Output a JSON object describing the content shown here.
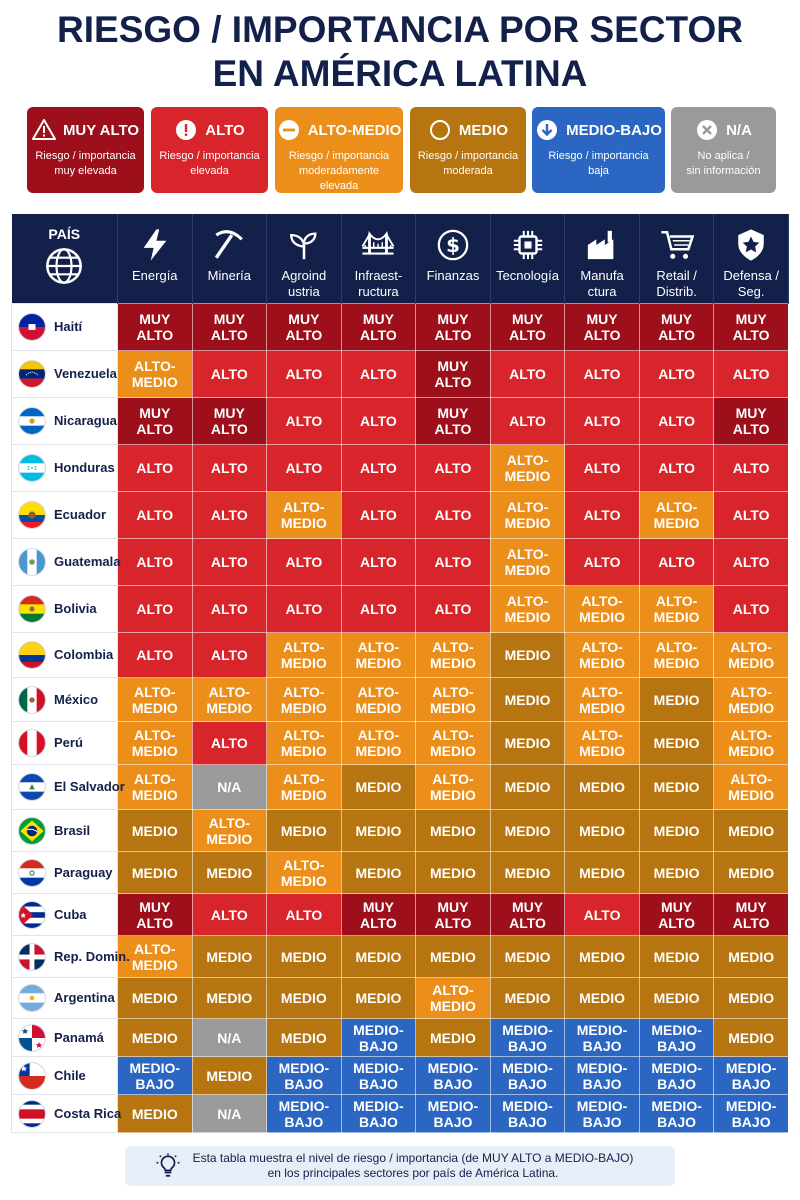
{
  "title": {
    "line1": "RIESGO / IMPORTANCIA POR SECTOR",
    "line2": "EN AMÉRICA LATINA"
  },
  "colors": {
    "MUY ALTO": "#9c0f1b",
    "ALTO": "#d8252b",
    "ALTO-MEDIO": "#ec8e1a",
    "MEDIO": "#b67510",
    "MEDIO-BAJO": "#2a66c2",
    "N/A": "#9a9a9a",
    "header": "#13204a"
  },
  "legend": [
    {
      "label": "MUY ALTO",
      "desc": "Riesgo / importancia\nmuy elevada",
      "icon": "warning-triangle-icon"
    },
    {
      "label": "ALTO",
      "desc": "Riesgo / importancia\nelevada",
      "icon": "exclamation-circle-icon"
    },
    {
      "label": "ALTO-MEDIO",
      "desc": "Riesgo / importancia\nmoderadamente\nelevada",
      "icon": "minus-circle-icon"
    },
    {
      "label": "MEDIO",
      "desc": "Riesgo / importancia\nmoderada",
      "icon": "empty-circle-icon"
    },
    {
      "label": "MEDIO-BAJO",
      "desc": "Riesgo / importancia\nbaja",
      "icon": "arrow-down-circle-icon"
    },
    {
      "label": "N/A",
      "desc": "No aplica /\nsin información",
      "icon": "x-circle-icon"
    }
  ],
  "chart_data": {
    "type": "table",
    "row_header": "PAÍS",
    "columns": [
      {
        "label": "Energía",
        "icon": "lightning-icon"
      },
      {
        "label": "Minería",
        "icon": "pickaxe-icon"
      },
      {
        "label": "Agroind\nustria",
        "icon": "sprout-icon"
      },
      {
        "label": "Infraest-\nructura",
        "icon": "bridge-icon"
      },
      {
        "label": "Finanzas",
        "icon": "dollar-coin-icon"
      },
      {
        "label": "Tecnología",
        "icon": "chip-icon"
      },
      {
        "label": "Manufa\nctura",
        "icon": "factory-icon"
      },
      {
        "label": "Retail /\nDistrib.",
        "icon": "cart-icon"
      },
      {
        "label": "Defensa /\nSeg.",
        "icon": "shield-star-icon"
      }
    ],
    "rows": [
      {
        "country": "Haití",
        "flag": "haiti-flag-icon",
        "values": [
          "MUY ALTO",
          "MUY ALTO",
          "MUY ALTO",
          "MUY ALTO",
          "MUY ALTO",
          "MUY ALTO",
          "MUY ALTO",
          "MUY ALTO",
          "MUY ALTO"
        ]
      },
      {
        "country": "Venezuela",
        "flag": "venezuela-flag-icon",
        "values": [
          "ALTO-MEDIO",
          "ALTO",
          "ALTO",
          "ALTO",
          "MUY ALTO",
          "ALTO",
          "ALTO",
          "ALTO",
          "ALTO"
        ]
      },
      {
        "country": "Nicaragua",
        "flag": "nicaragua-flag-icon",
        "values": [
          "MUY ALTO",
          "MUY ALTO",
          "ALTO",
          "ALTO",
          "MUY ALTO",
          "ALTO",
          "ALTO",
          "ALTO",
          "MUY ALTO"
        ]
      },
      {
        "country": "Honduras",
        "flag": "honduras-flag-icon",
        "values": [
          "ALTO",
          "ALTO",
          "ALTO",
          "ALTO",
          "ALTO",
          "ALTO-MEDIO",
          "ALTO",
          "ALTO",
          "ALTO"
        ]
      },
      {
        "country": "Ecuador",
        "flag": "ecuador-flag-icon",
        "values": [
          "ALTO",
          "ALTO",
          "ALTO-MEDIO",
          "ALTO",
          "ALTO",
          "ALTO-MEDIO",
          "ALTO",
          "ALTO-MEDIO",
          "ALTO"
        ]
      },
      {
        "country": "Guatemala",
        "flag": "guatemala-flag-icon",
        "values": [
          "ALTO",
          "ALTO",
          "ALTO",
          "ALTO",
          "ALTO",
          "ALTO-MEDIO",
          "ALTO",
          "ALTO",
          "ALTO"
        ]
      },
      {
        "country": "Bolivia",
        "flag": "bolivia-flag-icon",
        "values": [
          "ALTO",
          "ALTO",
          "ALTO",
          "ALTO",
          "ALTO",
          "ALTO-MEDIO",
          "ALTO-MEDIO",
          "ALTO-MEDIO",
          "ALTO"
        ]
      },
      {
        "country": "Colombia",
        "flag": "colombia-flag-icon",
        "values": [
          "ALTO",
          "ALTO",
          "ALTO-MEDIO",
          "ALTO-MEDIO",
          "ALTO-MEDIO",
          "MEDIO",
          "ALTO-MEDIO",
          "ALTO-MEDIO",
          "ALTO-MEDIO"
        ]
      },
      {
        "country": "México",
        "flag": "mexico-flag-icon",
        "values": [
          "ALTO-MEDIO",
          "ALTO-MEDIO",
          "ALTO-MEDIO",
          "ALTO-MEDIO",
          "ALTO-MEDIO",
          "MEDIO",
          "ALTO-MEDIO",
          "MEDIO",
          "ALTO-MEDIO"
        ]
      },
      {
        "country": "Perú",
        "flag": "peru-flag-icon",
        "values": [
          "ALTO-MEDIO",
          "ALTO",
          "ALTO-MEDIO",
          "ALTO-MEDIO",
          "ALTO-MEDIO",
          "MEDIO",
          "ALTO-MEDIO",
          "MEDIO",
          "ALTO-MEDIO"
        ]
      },
      {
        "country": "El Salvador",
        "flag": "el-salvador-flag-icon",
        "values": [
          "ALTO-MEDIO",
          "N/A",
          "ALTO-MEDIO",
          "MEDIO",
          "ALTO-MEDIO",
          "MEDIO",
          "MEDIO",
          "MEDIO",
          "ALTO-MEDIO"
        ]
      },
      {
        "country": "Brasil",
        "flag": "brazil-flag-icon",
        "values": [
          "MEDIO",
          "ALTO-MEDIO",
          "MEDIO",
          "MEDIO",
          "MEDIO",
          "MEDIO",
          "MEDIO",
          "MEDIO",
          "MEDIO"
        ]
      },
      {
        "country": "Paraguay",
        "flag": "paraguay-flag-icon",
        "values": [
          "MEDIO",
          "MEDIO",
          "ALTO-MEDIO",
          "MEDIO",
          "MEDIO",
          "MEDIO",
          "MEDIO",
          "MEDIO",
          "MEDIO"
        ]
      },
      {
        "country": "Cuba",
        "flag": "cuba-flag-icon",
        "values": [
          "MUY ALTO",
          "ALTO",
          "ALTO",
          "MUY ALTO",
          "MUY ALTO",
          "MUY ALTO",
          "ALTO",
          "MUY ALTO",
          "MUY ALTO"
        ]
      },
      {
        "country": "Rep. Domin.",
        "flag": "dominican-republic-flag-icon",
        "values": [
          "ALTO-MEDIO",
          "MEDIO",
          "MEDIO",
          "MEDIO",
          "MEDIO",
          "MEDIO",
          "MEDIO",
          "MEDIO",
          "MEDIO"
        ]
      },
      {
        "country": "Argentina",
        "flag": "argentina-flag-icon",
        "values": [
          "MEDIO",
          "MEDIO",
          "MEDIO",
          "MEDIO",
          "ALTO-MEDIO",
          "MEDIO",
          "MEDIO",
          "MEDIO",
          "MEDIO"
        ]
      },
      {
        "country": "Panamá",
        "flag": "panama-flag-icon",
        "values": [
          "MEDIO",
          "N/A",
          "MEDIO",
          "MEDIO-BAJO",
          "MEDIO",
          "MEDIO-BAJO",
          "MEDIO-BAJO",
          "MEDIO-BAJO",
          "MEDIO"
        ]
      },
      {
        "country": "Chile",
        "flag": "chile-flag-icon",
        "values": [
          "MEDIO-BAJO",
          "MEDIO",
          "MEDIO-BAJO",
          "MEDIO-BAJO",
          "MEDIO-BAJO",
          "MEDIO-BAJO",
          "MEDIO-BAJO",
          "MEDIO-BAJO",
          "MEDIO-BAJO"
        ]
      },
      {
        "country": "Costa Rica",
        "flag": "costa-rica-flag-icon",
        "values": [
          "MEDIO",
          "N/A",
          "MEDIO-BAJO",
          "MEDIO-BAJO",
          "MEDIO-BAJO",
          "MEDIO-BAJO",
          "MEDIO-BAJO",
          "MEDIO-BAJO",
          "MEDIO-BAJO"
        ]
      }
    ]
  },
  "footer": {
    "icon": "lightbulb-icon",
    "text": "Esta tabla muestra el nivel de riesgo / importancia (de MUY ALTO a MEDIO-BAJO)\nen los principales sectores por país de América Latina."
  }
}
